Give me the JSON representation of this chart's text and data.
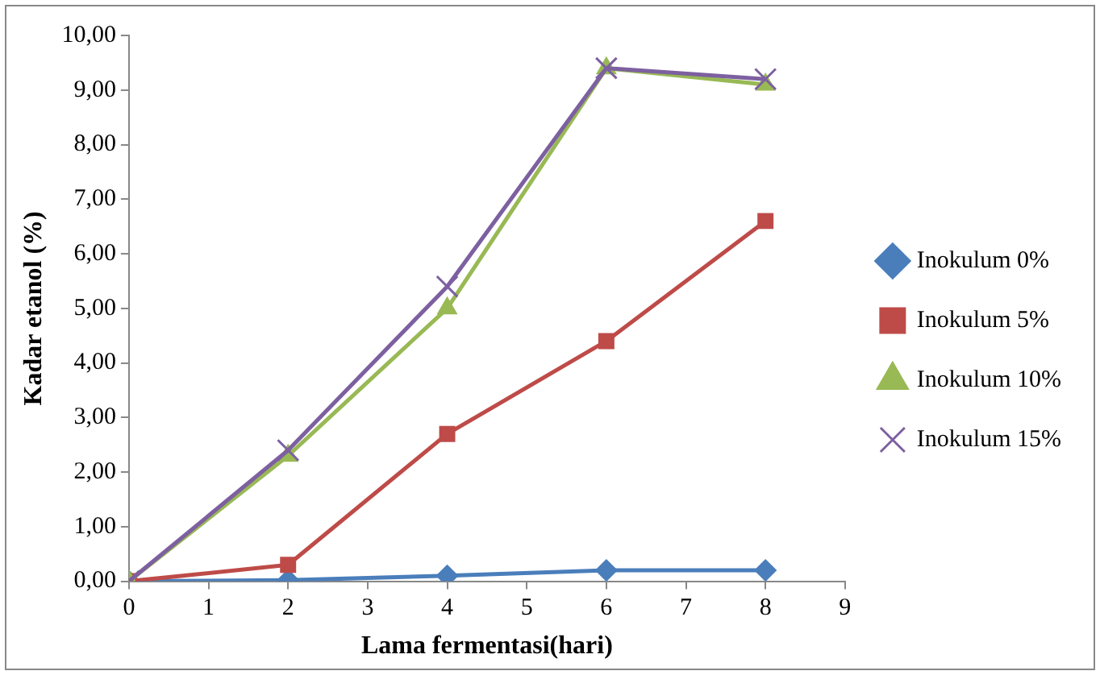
{
  "chart_data": {
    "type": "line",
    "xlabel": "Lama fermentasi(hari)",
    "ylabel": "Kadar etanol (%)",
    "x": [
      0,
      2,
      4,
      6,
      8
    ],
    "series": [
      {
        "name": "Inokulum 0%",
        "color": "#4a7ebb",
        "marker": "diamond",
        "values": [
          0,
          0.02,
          0.1,
          0.2,
          0.2
        ]
      },
      {
        "name": "Inokulum 5%",
        "color": "#be4b48",
        "marker": "square",
        "values": [
          0,
          0.3,
          2.7,
          4.4,
          6.6
        ]
      },
      {
        "name": "Inokulum 10%",
        "color": "#98b954",
        "marker": "triangle",
        "values": [
          0,
          2.3,
          5.0,
          9.4,
          9.1
        ]
      },
      {
        "name": "Inokulum 15%",
        "color": "#7d60a0",
        "marker": "cross",
        "values": [
          0,
          2.4,
          5.4,
          9.4,
          9.2
        ]
      }
    ],
    "xlim": [
      0,
      9
    ],
    "xticks": [
      0,
      1,
      2,
      3,
      4,
      5,
      6,
      7,
      8,
      9
    ],
    "ylim": [
      0,
      10
    ],
    "yticks": [
      {
        "value": 0,
        "label": "0,00"
      },
      {
        "value": 1,
        "label": "1,00"
      },
      {
        "value": 2,
        "label": "2,00"
      },
      {
        "value": 3,
        "label": "3,00"
      },
      {
        "value": 4,
        "label": "4,00"
      },
      {
        "value": 5,
        "label": "5,00"
      },
      {
        "value": 6,
        "label": "6,00"
      },
      {
        "value": 7,
        "label": "7,00"
      },
      {
        "value": 8,
        "label": "8,00"
      },
      {
        "value": 9,
        "label": "9,00"
      },
      {
        "value": 10,
        "label": "10,00"
      }
    ],
    "grid": false,
    "legend": "right",
    "line_style": "solid"
  }
}
